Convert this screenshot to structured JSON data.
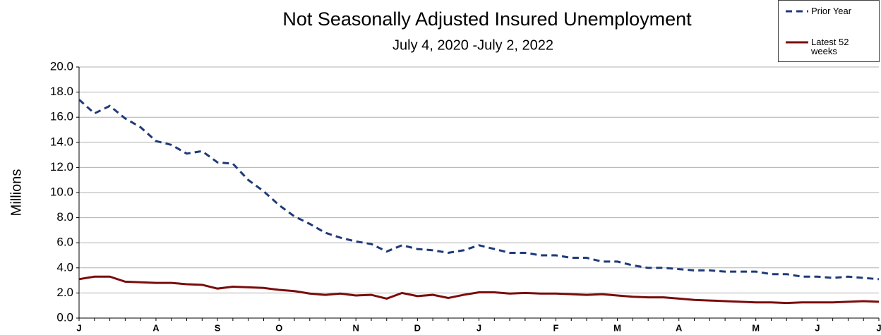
{
  "chart_data": {
    "type": "line",
    "title": "Not Seasonally Adjusted Insured Unemployment",
    "subtitle": "July 4, 2020 -July 2, 2022",
    "y_label": "Millions",
    "categories": [
      "J",
      null,
      null,
      null,
      null,
      "A",
      null,
      null,
      null,
      "S",
      null,
      null,
      null,
      "O",
      null,
      null,
      null,
      null,
      "N",
      null,
      null,
      null,
      "D",
      null,
      null,
      null,
      "J",
      null,
      null,
      null,
      null,
      "F",
      null,
      null,
      null,
      "M",
      null,
      null,
      null,
      "A",
      null,
      null,
      null,
      null,
      "M",
      null,
      null,
      null,
      "J",
      null,
      null,
      null,
      "J"
    ],
    "series": [
      {
        "name": "Prior Year",
        "color": "#1f3a7a",
        "dashed": true,
        "values": [
          17.4,
          16.3,
          16.9,
          15.9,
          15.2,
          14.1,
          13.8,
          13.1,
          13.3,
          12.4,
          12.3,
          11.0,
          10.1,
          9.0,
          8.1,
          7.5,
          6.8,
          6.4,
          6.1,
          5.9,
          5.3,
          5.8,
          5.5,
          5.4,
          5.2,
          5.4,
          5.8,
          5.5,
          5.2,
          5.2,
          5.0,
          5.0,
          4.8,
          4.8,
          4.5,
          4.5,
          4.2,
          4.0,
          4.0,
          3.9,
          3.8,
          3.8,
          3.7,
          3.7,
          3.7,
          3.5,
          3.5,
          3.3,
          3.3,
          3.2,
          3.3,
          3.2,
          3.1
        ]
      },
      {
        "name": "Latest 52 weeks",
        "color": "#7a0c0c",
        "dashed": false,
        "values": [
          3.1,
          3.3,
          3.3,
          2.9,
          2.85,
          2.8,
          2.8,
          2.7,
          2.65,
          2.35,
          2.5,
          2.45,
          2.4,
          2.25,
          2.15,
          1.95,
          1.85,
          1.95,
          1.8,
          1.85,
          1.55,
          2.0,
          1.75,
          1.85,
          1.6,
          1.85,
          2.05,
          2.05,
          1.95,
          2.0,
          1.95,
          1.95,
          1.9,
          1.85,
          1.9,
          1.8,
          1.7,
          1.65,
          1.65,
          1.55,
          1.45,
          1.4,
          1.35,
          1.3,
          1.25,
          1.25,
          1.2,
          1.25,
          1.25,
          1.25,
          1.3,
          1.35,
          1.3
        ]
      }
    ],
    "ylim": [
      0,
      20
    ],
    "yticks": [
      {
        "value": 0,
        "label": "0.0"
      },
      {
        "value": 2,
        "label": "2.0"
      },
      {
        "value": 4,
        "label": "4.0"
      },
      {
        "value": 6,
        "label": "6.0"
      },
      {
        "value": 8,
        "label": "8.0"
      },
      {
        "value": 10,
        "label": "10.0"
      },
      {
        "value": 12,
        "label": "12.0"
      },
      {
        "value": 14,
        "label": "14.0"
      },
      {
        "value": 16,
        "label": "16.0"
      },
      {
        "value": 18,
        "label": "18.0"
      },
      {
        "value": 20,
        "label": "20.0"
      }
    ],
    "grid": true
  }
}
